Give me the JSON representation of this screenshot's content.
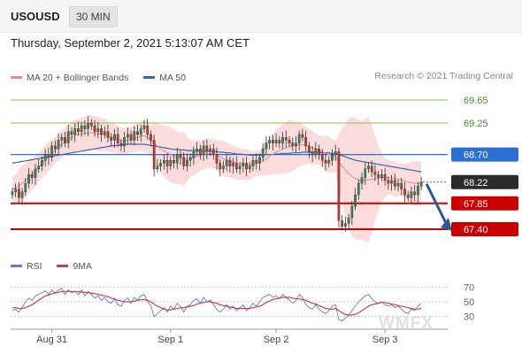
{
  "header": {
    "symbol": "USOUSD",
    "timeframe": "30 MIN"
  },
  "timestamp": "Thursday, September 2, 2021 5:13:07 AM CET",
  "legend": {
    "ma20_bb": "MA 20 + Bollinger Bands",
    "ma50": "MA 50",
    "credit": "Research © 2021 Trading Central",
    "rsi": "RSI",
    "rsi_ma": "9MA"
  },
  "watermark": "WMFX",
  "colors": {
    "bull": "#2e8b57",
    "bear": "#c0392b",
    "bollinger": "#f8d0d0",
    "ma20": "#e88b8b",
    "ma50": "#3a66b0",
    "support": "#cc0000",
    "resistance_green": "#8bc34a",
    "pivot_blue": "#2e6fd6",
    "arrow": "#2a5a9a",
    "rsi_line": "#5a7fd0",
    "rsi_ma": "#d04040"
  },
  "chart_data": [
    {
      "type": "candlestick",
      "ylim": [
        67.2,
        69.85
      ],
      "x_ticks": [
        "Aug 31",
        "Sep 1",
        "Sep 2",
        "Sep 3"
      ],
      "levels": [
        {
          "value": 69.65,
          "label": "69.65",
          "style": "resistance"
        },
        {
          "value": 69.25,
          "label": "69.25",
          "style": "resistance"
        },
        {
          "value": 68.7,
          "label": "68.70",
          "style": "pivot"
        },
        {
          "value": 68.22,
          "label": "68.22",
          "style": "last"
        },
        {
          "value": 67.85,
          "label": "67.85",
          "style": "support"
        },
        {
          "value": 67.4,
          "label": "67.40",
          "style": "support"
        }
      ],
      "close": [
        68.05,
        68.1,
        67.95,
        68.05,
        68.2,
        68.35,
        68.3,
        68.45,
        68.5,
        68.6,
        68.7,
        68.65,
        68.85,
        68.8,
        68.95,
        69.0,
        68.9,
        69.1,
        69.05,
        69.15,
        69.1,
        69.2,
        69.15,
        69.25,
        69.2,
        69.1,
        69.15,
        69.05,
        69.1,
        69.0,
        68.95,
        69.05,
        68.9,
        68.85,
        69.0,
        69.05,
        68.95,
        69.1,
        69.05,
        69.15,
        69.2,
        69.05,
        68.95,
        68.45,
        68.5,
        68.55,
        68.6,
        68.5,
        68.6,
        68.55,
        68.7,
        68.65,
        68.5,
        68.6,
        68.65,
        68.75,
        68.8,
        68.7,
        68.85,
        68.75,
        68.8,
        68.7,
        68.55,
        68.45,
        68.5,
        68.6,
        68.5,
        68.55,
        68.45,
        68.5,
        68.55,
        68.45,
        68.5,
        68.6,
        68.55,
        68.65,
        68.8,
        68.9,
        68.95,
        68.9,
        68.95,
        68.9,
        69.0,
        68.95,
        68.9,
        68.85,
        68.9,
        69.05,
        69.0,
        68.85,
        68.75,
        68.7,
        68.8,
        68.7,
        68.6,
        68.55,
        68.6,
        68.7,
        68.75,
        67.55,
        67.45,
        67.5,
        67.6,
        67.8,
        68.0,
        68.2,
        68.3,
        68.45,
        68.5,
        68.4,
        68.35,
        68.3,
        68.35,
        68.25,
        68.2,
        68.25,
        68.15,
        68.2,
        68.1,
        68.0,
        67.95,
        68.05,
        68.0,
        68.15,
        68.22
      ],
      "ma20": [
        68.1,
        68.12,
        68.15,
        68.2,
        68.25,
        68.3,
        68.36,
        68.42,
        68.48,
        68.55,
        68.6,
        68.66,
        68.72,
        68.78,
        68.83,
        68.88,
        68.92,
        68.96,
        69.0,
        69.03,
        69.05,
        69.06,
        69.07,
        69.08,
        69.08,
        69.07,
        69.06,
        69.05,
        69.04,
        69.02,
        69.0,
        68.98,
        68.96,
        68.94,
        68.94,
        68.95,
        68.96,
        68.98,
        69.0,
        69.02,
        69.03,
        69.0,
        68.95,
        68.9,
        68.85,
        68.8,
        68.76,
        68.73,
        68.7,
        68.67,
        68.65,
        68.63,
        68.62,
        68.62,
        68.63,
        68.64,
        68.66,
        68.68,
        68.7,
        68.71,
        68.72,
        68.71,
        68.69,
        68.66,
        68.63,
        68.61,
        68.59,
        68.57,
        68.55,
        68.54,
        68.53,
        68.52,
        68.52,
        68.53,
        68.54,
        68.56,
        68.59,
        68.63,
        68.67,
        68.71,
        68.74,
        68.77,
        68.8,
        68.82,
        68.84,
        68.85,
        68.86,
        68.87,
        68.87,
        68.86,
        68.84,
        68.82,
        68.8,
        68.78,
        68.75,
        68.72,
        68.7,
        68.68,
        68.66,
        68.58,
        68.5,
        68.43,
        68.37,
        68.32,
        68.28,
        68.26,
        68.25,
        68.25,
        68.26,
        68.27,
        68.28,
        68.29,
        68.3,
        68.3,
        68.3,
        68.29,
        68.28,
        68.27,
        68.26,
        68.24,
        68.22,
        68.21,
        68.2,
        68.2,
        68.2
      ],
      "ma50": [
        68.55,
        68.56,
        68.57,
        68.58,
        68.59,
        68.6,
        68.61,
        68.62,
        68.63,
        68.64,
        68.65,
        68.66,
        68.67,
        68.68,
        68.69,
        68.7,
        68.71,
        68.72,
        68.73,
        68.74,
        68.75,
        68.76,
        68.77,
        68.78,
        68.79,
        68.8,
        68.81,
        68.82,
        68.83,
        68.84,
        68.85,
        68.86,
        68.86,
        68.87,
        68.87,
        68.88,
        68.88,
        68.88,
        68.88,
        68.88,
        68.88,
        68.87,
        68.86,
        68.85,
        68.84,
        68.83,
        68.82,
        68.81,
        68.8,
        68.79,
        68.79,
        68.78,
        68.78,
        68.77,
        68.77,
        68.77,
        68.77,
        68.76,
        68.76,
        68.76,
        68.76,
        68.75,
        68.75,
        68.74,
        68.74,
        68.73,
        68.73,
        68.72,
        68.71,
        68.71,
        68.7,
        68.7,
        68.69,
        68.69,
        68.69,
        68.69,
        68.69,
        68.7,
        68.7,
        68.7,
        68.71,
        68.71,
        68.72,
        68.72,
        68.72,
        68.73,
        68.73,
        68.73,
        68.74,
        68.74,
        68.74,
        68.74,
        68.74,
        68.74,
        68.73,
        68.73,
        68.73,
        68.72,
        68.72,
        68.7,
        68.68,
        68.66,
        68.64,
        68.62,
        68.6,
        68.59,
        68.58,
        68.57,
        68.56,
        68.55,
        68.54,
        68.53,
        68.52,
        68.51,
        68.5,
        68.49,
        68.48,
        68.47,
        68.46,
        68.45,
        68.44,
        68.43,
        68.42,
        68.41,
        68.4
      ]
    },
    {
      "type": "line",
      "title": "RSI",
      "ylim": [
        20,
        80
      ],
      "y_ticks": [
        70,
        50,
        30
      ],
      "series": [
        {
          "name": "RSI",
          "values": [
            38,
            40,
            36,
            42,
            50,
            55,
            52,
            58,
            60,
            62,
            65,
            60,
            66,
            62,
            66,
            68,
            60,
            66,
            62,
            64,
            60,
            66,
            58,
            64,
            60,
            55,
            58,
            52,
            56,
            50,
            48,
            54,
            46,
            44,
            52,
            55,
            48,
            56,
            52,
            58,
            60,
            50,
            45,
            30,
            34,
            38,
            42,
            36,
            44,
            40,
            48,
            44,
            36,
            44,
            46,
            52,
            54,
            48,
            56,
            50,
            52,
            46,
            40,
            36,
            40,
            46,
            40,
            44,
            38,
            42,
            46,
            38,
            42,
            48,
            44,
            50,
            56,
            58,
            60,
            56,
            58,
            54,
            60,
            56,
            52,
            48,
            52,
            60,
            56,
            46,
            42,
            40,
            46,
            40,
            36,
            34,
            38,
            44,
            46,
            26,
            24,
            28,
            32,
            38,
            44,
            50,
            54,
            58,
            60,
            54,
            50,
            48,
            50,
            46,
            44,
            46,
            42,
            44,
            40,
            36,
            34,
            40,
            38,
            44,
            48
          ]
        },
        {
          "name": "9MA",
          "values": [
            42,
            42,
            41,
            41,
            42,
            44,
            46,
            49,
            52,
            55,
            58,
            59,
            61,
            62,
            63,
            64,
            64,
            64,
            64,
            64,
            64,
            63,
            63,
            62,
            62,
            61,
            60,
            59,
            58,
            57,
            55,
            54,
            52,
            51,
            50,
            50,
            50,
            51,
            52,
            53,
            53,
            52,
            50,
            47,
            44,
            42,
            40,
            39,
            39,
            40,
            41,
            42,
            42,
            43,
            44,
            45,
            47,
            48,
            49,
            50,
            50,
            49,
            48,
            46,
            45,
            44,
            43,
            42,
            41,
            41,
            41,
            41,
            41,
            42,
            43,
            44,
            46,
            49,
            51,
            53,
            54,
            55,
            56,
            56,
            56,
            55,
            54,
            54,
            53,
            52,
            50,
            48,
            47,
            45,
            43,
            41,
            40,
            40,
            41,
            38,
            35,
            33,
            32,
            32,
            33,
            35,
            38,
            41,
            44,
            46,
            47,
            48,
            49,
            49,
            48,
            47,
            46,
            45,
            44,
            43,
            42,
            41,
            40,
            40,
            41
          ]
        }
      ]
    }
  ]
}
